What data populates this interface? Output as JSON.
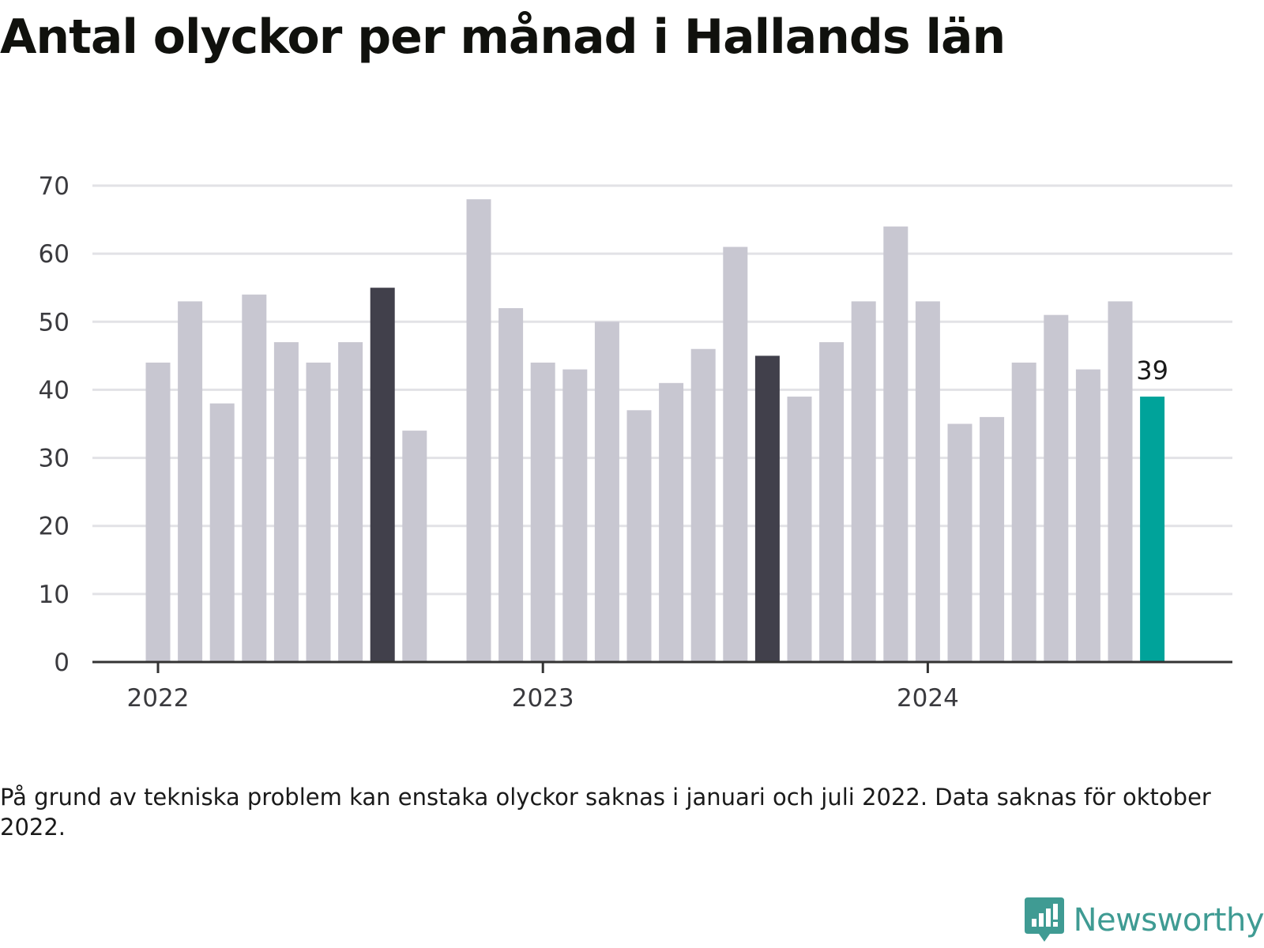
{
  "title": "Antal olyckor per månad i Hallands län",
  "note": "På grund av tekniska problem kan enstaka olyckor saknas i januari och juli 2022. Data saknas för oktober 2022.",
  "brand": {
    "name": "Newsworthy",
    "icon": "newsworthy-logo-icon"
  },
  "colors": {
    "default": "#c8c7d1",
    "highlight": "#41404b",
    "latest": "#00a39a",
    "grid": "#e2e2e6",
    "axis": "#333333"
  },
  "chart_data": {
    "type": "bar",
    "title": "Antal olyckor per månad i Hallands län",
    "xlabel": "",
    "ylabel": "",
    "ylim": [
      0,
      70
    ],
    "yticks": [
      0,
      10,
      20,
      30,
      40,
      50,
      60,
      70
    ],
    "grid": true,
    "legend": "none",
    "xtick_labels": [
      {
        "label": "2022",
        "category": "2022-01"
      },
      {
        "label": "2023",
        "category": "2023-01"
      },
      {
        "label": "2024",
        "category": "2024-01"
      }
    ],
    "categories": [
      "2022-01",
      "2022-02",
      "2022-03",
      "2022-04",
      "2022-05",
      "2022-06",
      "2022-07",
      "2022-08",
      "2022-09",
      "2022-10",
      "2022-11",
      "2022-12",
      "2023-01",
      "2023-02",
      "2023-03",
      "2023-04",
      "2023-05",
      "2023-06",
      "2023-07",
      "2023-08",
      "2023-09",
      "2023-10",
      "2023-11",
      "2023-12",
      "2024-01",
      "2024-02",
      "2024-03",
      "2024-04",
      "2024-05",
      "2024-06",
      "2024-07",
      "2024-08"
    ],
    "values": [
      44,
      53,
      38,
      54,
      47,
      44,
      47,
      55,
      34,
      null,
      68,
      52,
      44,
      43,
      50,
      37,
      41,
      46,
      61,
      45,
      39,
      47,
      53,
      64,
      53,
      35,
      36,
      44,
      51,
      43,
      53,
      39
    ],
    "highlighted": [
      "2022-08",
      "2023-08"
    ],
    "latest": "2024-08",
    "annotations": [
      {
        "category": "2024-08",
        "text": "39"
      }
    ]
  }
}
